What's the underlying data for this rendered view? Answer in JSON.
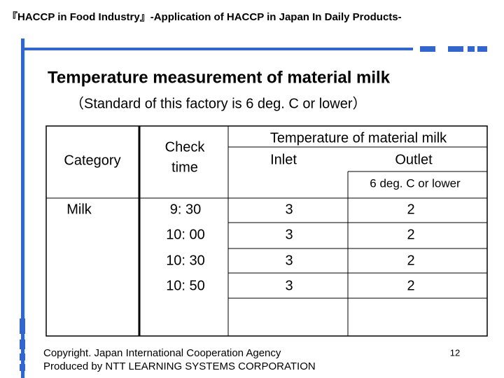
{
  "header": {
    "title": "『HACCP in Food Industry』-Application of HACCP in Japan In Daily Products-"
  },
  "title": "Temperature measurement of material milk",
  "subtitle": "（Standard of this factory is 6 deg. C or lower）",
  "table": {
    "headers": {
      "category": "Category",
      "check_time": [
        "Check",
        "time"
      ],
      "temperature": "Temperature of material milk",
      "inlet": "Inlet",
      "outlet": "Outlet",
      "standard": "6 deg. C or lower"
    },
    "category": "Milk",
    "rows": [
      [
        "9: 30",
        "3",
        "2"
      ],
      [
        "10: 00",
        "3",
        "2"
      ],
      [
        "10: 30",
        "3",
        "2"
      ],
      [
        "10: 50",
        "3",
        "2"
      ]
    ]
  },
  "footer": {
    "lines": [
      "Copyright. Japan International Cooperation Agency",
      "Produced by NTT LEARNING SYSTEMS CORPORATION"
    ],
    "page": "12"
  }
}
